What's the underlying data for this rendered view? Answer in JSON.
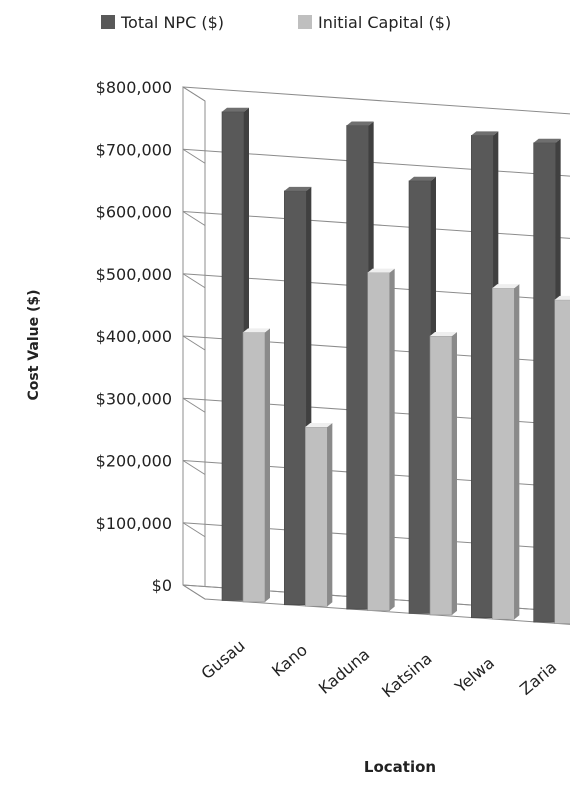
{
  "chart_data": {
    "type": "bar",
    "style": "3d-clustered-column",
    "categories": [
      "Gusau",
      "Kano",
      "Kaduna",
      "Katsina",
      "Yelwa",
      "Zaria"
    ],
    "series": [
      {
        "name": "Total NPC ($)",
        "values": [
          785000,
          665000,
          777000,
          695000,
          775000,
          770000
        ],
        "color": "#595959"
      },
      {
        "name": "Initial Capital ($)",
        "values": [
          433000,
          288000,
          543000,
          448000,
          532000,
          520000
        ],
        "color": "#bfbfbf"
      }
    ],
    "xlabel": "Location",
    "ylabel": "Cost Value ($)",
    "ylim": [
      0,
      800000
    ],
    "yticks": [
      "$0",
      "$100,000",
      "$200,000",
      "$300,000",
      "$400,000",
      "$500,000",
      "$600,000",
      "$700,000",
      "$800,000"
    ],
    "grid": true,
    "legend_position": "top"
  }
}
